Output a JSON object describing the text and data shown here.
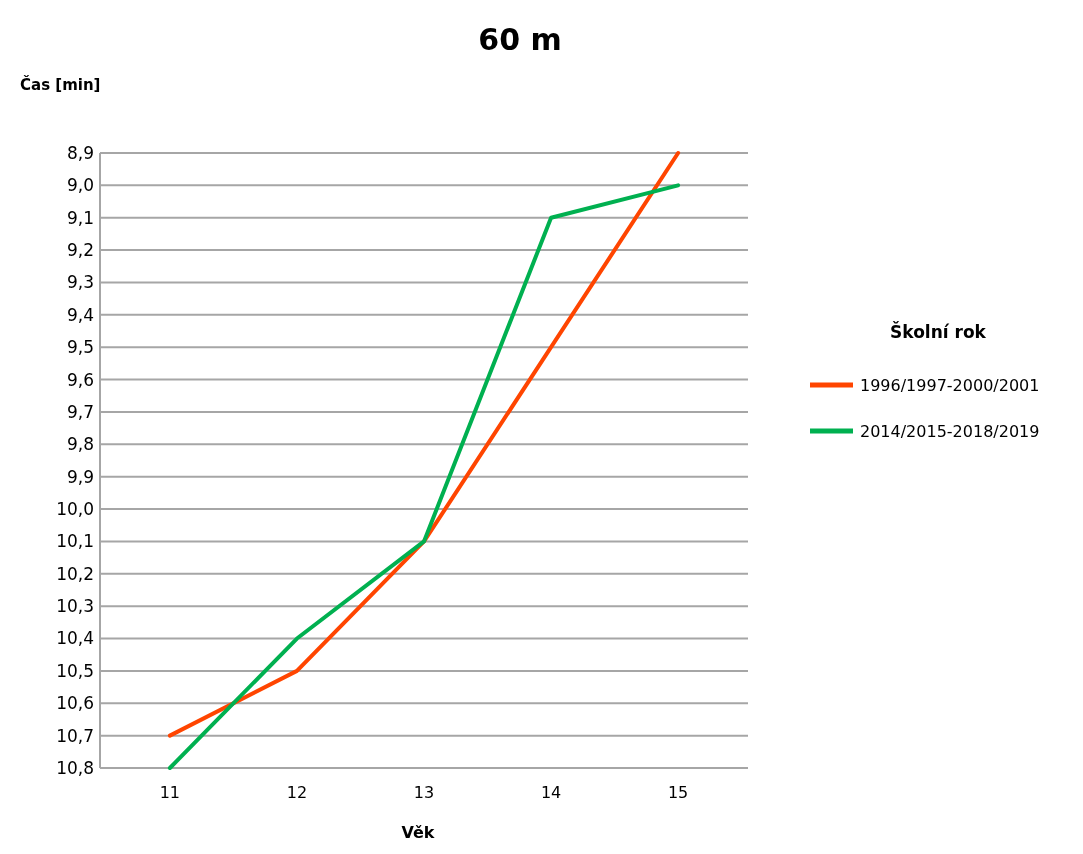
{
  "chart_data": {
    "type": "line",
    "title": "60 m",
    "xlabel": "Věk",
    "ylabel": "Čas [min]",
    "legend_title": "Školní rok",
    "categories": [
      "11",
      "12",
      "13",
      "14",
      "15"
    ],
    "series": [
      {
        "name": "1996/1997-2000/2001",
        "color": "#ff4500",
        "values": [
          10.7,
          10.5,
          10.1,
          9.5,
          8.9
        ]
      },
      {
        "name": "2014/2015-2018/2019",
        "color": "#00b050",
        "values": [
          10.8,
          10.4,
          10.1,
          9.1,
          9.0
        ]
      }
    ],
    "ylim": [
      10.8,
      8.9
    ],
    "yticks": [
      {
        "value": 8.9,
        "label": "8,9"
      },
      {
        "value": 9.0,
        "label": "9,0"
      },
      {
        "value": 9.1,
        "label": "9,1"
      },
      {
        "value": 9.2,
        "label": "9,2"
      },
      {
        "value": 9.3,
        "label": "9,3"
      },
      {
        "value": 9.4,
        "label": "9,4"
      },
      {
        "value": 9.5,
        "label": "9,5"
      },
      {
        "value": 9.6,
        "label": "9,6"
      },
      {
        "value": 9.7,
        "label": "9,7"
      },
      {
        "value": 9.8,
        "label": "9,8"
      },
      {
        "value": 9.9,
        "label": "9,9"
      },
      {
        "value": 10.0,
        "label": "10,0"
      },
      {
        "value": 10.1,
        "label": "10,1"
      },
      {
        "value": 10.2,
        "label": "10,2"
      },
      {
        "value": 10.3,
        "label": "10,3"
      },
      {
        "value": 10.4,
        "label": "10,4"
      },
      {
        "value": 10.5,
        "label": "10,5"
      },
      {
        "value": 10.6,
        "label": "10,6"
      },
      {
        "value": 10.7,
        "label": "10,7"
      },
      {
        "value": 10.8,
        "label": "10,8"
      }
    ],
    "grid": "y",
    "legend": "right",
    "marker": "none",
    "line_style": "solid"
  }
}
